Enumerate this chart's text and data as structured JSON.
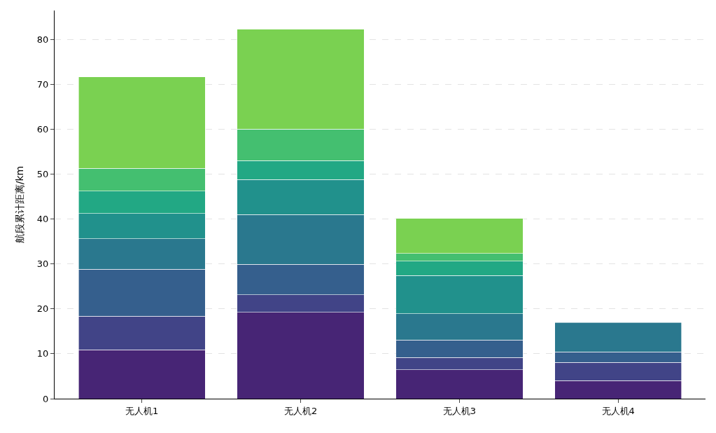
{
  "chart_data": {
    "type": "bar",
    "stacked": true,
    "ylabel": "航段累计距离/km",
    "categories": [
      "无人机1",
      "无人机2",
      "无人机3",
      "无人机4"
    ],
    "series": [
      {
        "color": "#472575",
        "values": [
          10.9,
          19.2,
          6.4,
          4.0
        ]
      },
      {
        "color": "#414487",
        "values": [
          7.5,
          3.9,
          2.8,
          4.1
        ]
      },
      {
        "color": "#355f8d",
        "values": [
          10.4,
          6.8,
          3.9,
          2.3
        ]
      },
      {
        "color": "#2a788e",
        "values": [
          6.8,
          11.1,
          5.8,
          6.6
        ]
      },
      {
        "color": "#21918c",
        "values": [
          5.6,
          7.8,
          8.5,
          null
        ]
      },
      {
        "color": "#22a884",
        "values": [
          5.0,
          4.2,
          3.2,
          null
        ]
      },
      {
        "color": "#44bf70",
        "values": [
          5.1,
          7.0,
          1.7,
          null
        ]
      },
      {
        "color": "#7ad151",
        "values": [
          20.3,
          22.2,
          7.8,
          null
        ]
      }
    ],
    "ylim": [
      0,
      86.4
    ],
    "yticks": [
      0,
      10,
      20,
      30,
      40,
      50,
      60,
      70,
      80
    ],
    "grid": "y"
  }
}
